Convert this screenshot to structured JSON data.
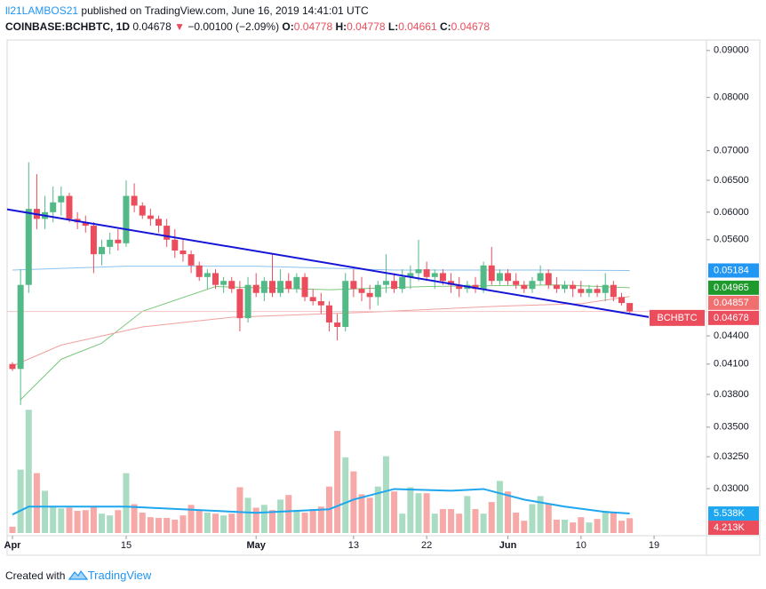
{
  "header": {
    "author": "ll21LAMBOS21",
    "published": "published on TradingView.com, June 16, 2019 14:41:01 UTC",
    "symbol": "COINBASE:BCHBTC, 1D",
    "last": "0.04678",
    "change": "−0.00100 (−2.09%)",
    "o_label": "O:",
    "o": "0.04778",
    "h_label": "H:",
    "h": "0.04778",
    "l_label": "L:",
    "l": "0.04661",
    "c_label": "C:",
    "c": "0.04678"
  },
  "footer": {
    "created": "Created with",
    "brand": "TradingView"
  },
  "chart_data": {
    "type": "candlestick",
    "log_scale": true,
    "grid": false,
    "up_color": "#53b987",
    "down_color": "#eb4d5c",
    "volume_up_color": "#a9dcc3",
    "volume_down_color": "#f7a9a7",
    "categories": [
      "2019-04-01",
      "2019-04-02",
      "2019-04-03",
      "2019-04-04",
      "2019-04-05",
      "2019-04-06",
      "2019-04-07",
      "2019-04-08",
      "2019-04-09",
      "2019-04-10",
      "2019-04-11",
      "2019-04-12",
      "2019-04-13",
      "2019-04-14",
      "2019-04-15",
      "2019-04-16",
      "2019-04-17",
      "2019-04-18",
      "2019-04-19",
      "2019-04-20",
      "2019-04-21",
      "2019-04-22",
      "2019-04-23",
      "2019-04-24",
      "2019-04-25",
      "2019-04-26",
      "2019-04-27",
      "2019-04-28",
      "2019-04-29",
      "2019-04-30",
      "2019-05-01",
      "2019-05-02",
      "2019-05-03",
      "2019-05-04",
      "2019-05-05",
      "2019-05-06",
      "2019-05-07",
      "2019-05-08",
      "2019-05-09",
      "2019-05-10",
      "2019-05-11",
      "2019-05-12",
      "2019-05-13",
      "2019-05-14",
      "2019-05-15",
      "2019-05-16",
      "2019-05-17",
      "2019-05-18",
      "2019-05-19",
      "2019-05-20",
      "2019-05-21",
      "2019-05-22",
      "2019-05-23",
      "2019-05-24",
      "2019-05-25",
      "2019-05-26",
      "2019-05-27",
      "2019-05-28",
      "2019-05-29",
      "2019-05-30",
      "2019-05-31",
      "2019-06-01",
      "2019-06-02",
      "2019-06-03",
      "2019-06-04",
      "2019-06-05",
      "2019-06-06",
      "2019-06-07",
      "2019-06-08",
      "2019-06-09",
      "2019-06-10",
      "2019-06-11",
      "2019-06-12",
      "2019-06-13",
      "2019-06-14",
      "2019-06-15",
      "2019-06-16"
    ],
    "open": [
      0.041,
      0.0405,
      0.05,
      0.0605,
      0.059,
      0.06,
      0.0615,
      0.0625,
      0.059,
      0.0585,
      0.058,
      0.054,
      0.055,
      0.056,
      0.0555,
      0.0625,
      0.061,
      0.0595,
      0.059,
      0.058,
      0.056,
      0.0545,
      0.054,
      0.0525,
      0.051,
      0.0515,
      0.05,
      0.0505,
      0.0495,
      0.046,
      0.05,
      0.049,
      0.0505,
      0.049,
      0.0505,
      0.0495,
      0.051,
      0.0485,
      0.048,
      0.0475,
      0.0455,
      0.045,
      0.0505,
      0.0495,
      0.049,
      0.0485,
      0.05,
      0.0505,
      0.0495,
      0.051,
      0.0515,
      0.052,
      0.051,
      0.0515,
      0.0505,
      0.05,
      0.0495,
      0.05,
      0.0495,
      0.0525,
      0.0505,
      0.0515,
      0.0505,
      0.05,
      0.0495,
      0.0505,
      0.0515,
      0.05,
      0.0495,
      0.05,
      0.0495,
      0.049,
      0.0495,
      0.049,
      0.05,
      0.0485,
      0.04778
    ],
    "high": [
      0.0412,
      0.052,
      0.068,
      0.066,
      0.0625,
      0.064,
      0.064,
      0.063,
      0.06,
      0.0595,
      0.0585,
      0.056,
      0.057,
      0.0575,
      0.065,
      0.0645,
      0.0615,
      0.0605,
      0.0595,
      0.059,
      0.0575,
      0.056,
      0.0545,
      0.053,
      0.052,
      0.052,
      0.051,
      0.051,
      0.0505,
      0.051,
      0.0515,
      0.051,
      0.054,
      0.052,
      0.0515,
      0.0515,
      0.0515,
      0.0495,
      0.049,
      0.048,
      0.0465,
      0.0515,
      0.052,
      0.051,
      0.05,
      0.0505,
      0.054,
      0.0515,
      0.052,
      0.0525,
      0.056,
      0.053,
      0.052,
      0.052,
      0.0515,
      0.051,
      0.0505,
      0.051,
      0.053,
      0.055,
      0.052,
      0.052,
      0.0515,
      0.0505,
      0.051,
      0.0525,
      0.052,
      0.051,
      0.0505,
      0.0505,
      0.0505,
      0.05,
      0.05,
      0.0515,
      0.0505,
      0.049,
      0.04778
    ],
    "low": [
      0.0403,
      0.037,
      0.049,
      0.0575,
      0.0575,
      0.0585,
      0.0595,
      0.0585,
      0.0575,
      0.057,
      0.0515,
      0.0525,
      0.054,
      0.0545,
      0.055,
      0.06,
      0.059,
      0.058,
      0.057,
      0.055,
      0.0535,
      0.053,
      0.0515,
      0.0505,
      0.0495,
      0.0495,
      0.049,
      0.049,
      0.0445,
      0.0455,
      0.0485,
      0.048,
      0.0485,
      0.0485,
      0.049,
      0.049,
      0.048,
      0.0475,
      0.0465,
      0.0445,
      0.0435,
      0.0445,
      0.0485,
      0.048,
      0.047,
      0.0475,
      0.049,
      0.049,
      0.049,
      0.0495,
      0.0505,
      0.0505,
      0.0495,
      0.05,
      0.049,
      0.0485,
      0.049,
      0.049,
      0.049,
      0.05,
      0.05,
      0.05,
      0.0495,
      0.049,
      0.049,
      0.05,
      0.0495,
      0.049,
      0.049,
      0.0485,
      0.0485,
      0.0485,
      0.0485,
      0.048,
      0.048,
      0.0475,
      0.04661
    ],
    "close": [
      0.0405,
      0.05,
      0.0605,
      0.059,
      0.06,
      0.0615,
      0.0625,
      0.059,
      0.0585,
      0.058,
      0.054,
      0.055,
      0.056,
      0.0555,
      0.0625,
      0.061,
      0.0595,
      0.059,
      0.058,
      0.056,
      0.0545,
      0.054,
      0.0525,
      0.051,
      0.0515,
      0.05,
      0.0505,
      0.0495,
      0.046,
      0.05,
      0.049,
      0.0505,
      0.049,
      0.0505,
      0.0495,
      0.051,
      0.0485,
      0.048,
      0.0475,
      0.0455,
      0.045,
      0.0505,
      0.0495,
      0.049,
      0.0485,
      0.05,
      0.0505,
      0.0495,
      0.051,
      0.0515,
      0.052,
      0.051,
      0.0515,
      0.0505,
      0.05,
      0.0495,
      0.05,
      0.0495,
      0.0525,
      0.0505,
      0.0515,
      0.0505,
      0.05,
      0.0495,
      0.0505,
      0.0515,
      0.05,
      0.0495,
      0.05,
      0.0495,
      0.049,
      0.0495,
      0.049,
      0.05,
      0.0485,
      0.04778,
      0.04678
    ],
    "volume": [
      1800,
      18000,
      35000,
      17000,
      12000,
      7500,
      7000,
      7200,
      6300,
      6500,
      7500,
      5500,
      5000,
      6500,
      17000,
      8200,
      5800,
      4500,
      4300,
      4300,
      3800,
      5000,
      8000,
      6300,
      5800,
      5500,
      5000,
      5500,
      13000,
      10000,
      7200,
      8000,
      6500,
      9500,
      10800,
      6500,
      5800,
      6800,
      7500,
      13200,
      29000,
      21500,
      17500,
      11000,
      10000,
      13200,
      21800,
      11800,
      5500,
      13000,
      11300,
      11300,
      5500,
      6800,
      6800,
      5500,
      10500,
      6800,
      5500,
      8800,
      14800,
      11800,
      5800,
      3500,
      8200,
      10500,
      8200,
      3800,
      3800,
      3000,
      4500,
      3000,
      4000,
      6300,
      6000,
      3500,
      4213
    ],
    "ylim": [
      0.02684,
      0.0924
    ],
    "volume_ylim": [
      0,
      140000
    ],
    "yticks": [
      {
        "value": 0.09,
        "label": "0.09000"
      },
      {
        "value": 0.08,
        "label": "0.08000"
      },
      {
        "value": 0.07,
        "label": "0.07000"
      },
      {
        "value": 0.065,
        "label": "0.06500"
      },
      {
        "value": 0.06,
        "label": "0.06000"
      },
      {
        "value": 0.056,
        "label": "0.05600"
      },
      {
        "value": 0.044,
        "label": "0.04400"
      },
      {
        "value": 0.041,
        "label": "0.04100"
      },
      {
        "value": 0.038,
        "label": "0.03800"
      },
      {
        "value": 0.035,
        "label": "0.03500"
      },
      {
        "value": 0.0325,
        "label": "0.03250"
      },
      {
        "value": 0.03,
        "label": "0.03000"
      }
    ],
    "xticks": [
      {
        "value": "2019-04-01",
        "label": "Apr"
      },
      {
        "value": "2019-04-15",
        "label": "15"
      },
      {
        "value": "2019-05-01",
        "label": "May"
      },
      {
        "value": "2019-05-13",
        "label": "13"
      },
      {
        "value": "2019-05-22",
        "label": "22"
      },
      {
        "value": "2019-06-01",
        "label": "Jun"
      },
      {
        "value": "2019-06-10",
        "label": "10"
      },
      {
        "value": "2019-06-19",
        "label": "19"
      }
    ],
    "lines": [
      {
        "color": "#8cc2ee",
        "x": [
          "2019-04-01",
          "2019-04-15",
          "2019-05-01",
          "2019-05-18",
          "2019-06-05",
          "2019-06-16"
        ],
        "values": [
          0.0519,
          0.0524,
          0.0524,
          0.0519,
          0.0519,
          0.05184
        ]
      },
      {
        "color": "#7bc77b",
        "x": [
          "2019-04-02",
          "2019-04-07",
          "2019-04-12",
          "2019-04-17",
          "2019-04-26",
          "2019-05-10",
          "2019-05-22",
          "2019-06-07",
          "2019-06-16"
        ],
        "values": [
          0.0375,
          0.0415,
          0.0432,
          0.0468,
          0.0498,
          0.0494,
          0.0498,
          0.05,
          0.04965
        ]
      },
      {
        "color": "#f0a0a0",
        "x": [
          "2019-04-01",
          "2019-04-07",
          "2019-04-17",
          "2019-04-28",
          "2019-05-15",
          "2019-05-31",
          "2019-06-10",
          "2019-06-16"
        ],
        "values": [
          0.0408,
          0.043,
          0.045,
          0.0461,
          0.0467,
          0.0474,
          0.0477,
          0.04857
        ]
      }
    ],
    "trendline": {
      "color": "#1515d8",
      "x": [
        "2019-04-01",
        "2019-06-16"
      ],
      "values": [
        0.0603,
        0.0465
      ]
    },
    "volume_ma": {
      "color": "#1ea7ee",
      "x": [
        "2019-04-01",
        "2019-04-03",
        "2019-04-15",
        "2019-05-01",
        "2019-05-10",
        "2019-05-13",
        "2019-05-18",
        "2019-05-25",
        "2019-05-29",
        "2019-06-03",
        "2019-06-08",
        "2019-06-13",
        "2019-06-16"
      ],
      "values": [
        5250,
        7500,
        7500,
        5750,
        6750,
        9500,
        12500,
        12000,
        12500,
        9500,
        7500,
        6000,
        5538
      ]
    },
    "axis_labels": [
      {
        "value": 0.05184,
        "label": "0.05184",
        "color": "#2196f3"
      },
      {
        "value": 0.04965,
        "label": "0.04965",
        "color": "#1e9a2c"
      },
      {
        "value": 0.04857,
        "label": "0.04857",
        "color": "#f07070"
      },
      {
        "value": 0.04678,
        "label": "0.04678",
        "color": "#eb4d5c",
        "name": "BCHBTC"
      }
    ],
    "volume_labels": [
      {
        "value": 5538,
        "label": "5.538K",
        "color": "#1ea7ee"
      },
      {
        "value": 4213,
        "label": "4.213K",
        "color": "#eb4d5c"
      }
    ]
  }
}
